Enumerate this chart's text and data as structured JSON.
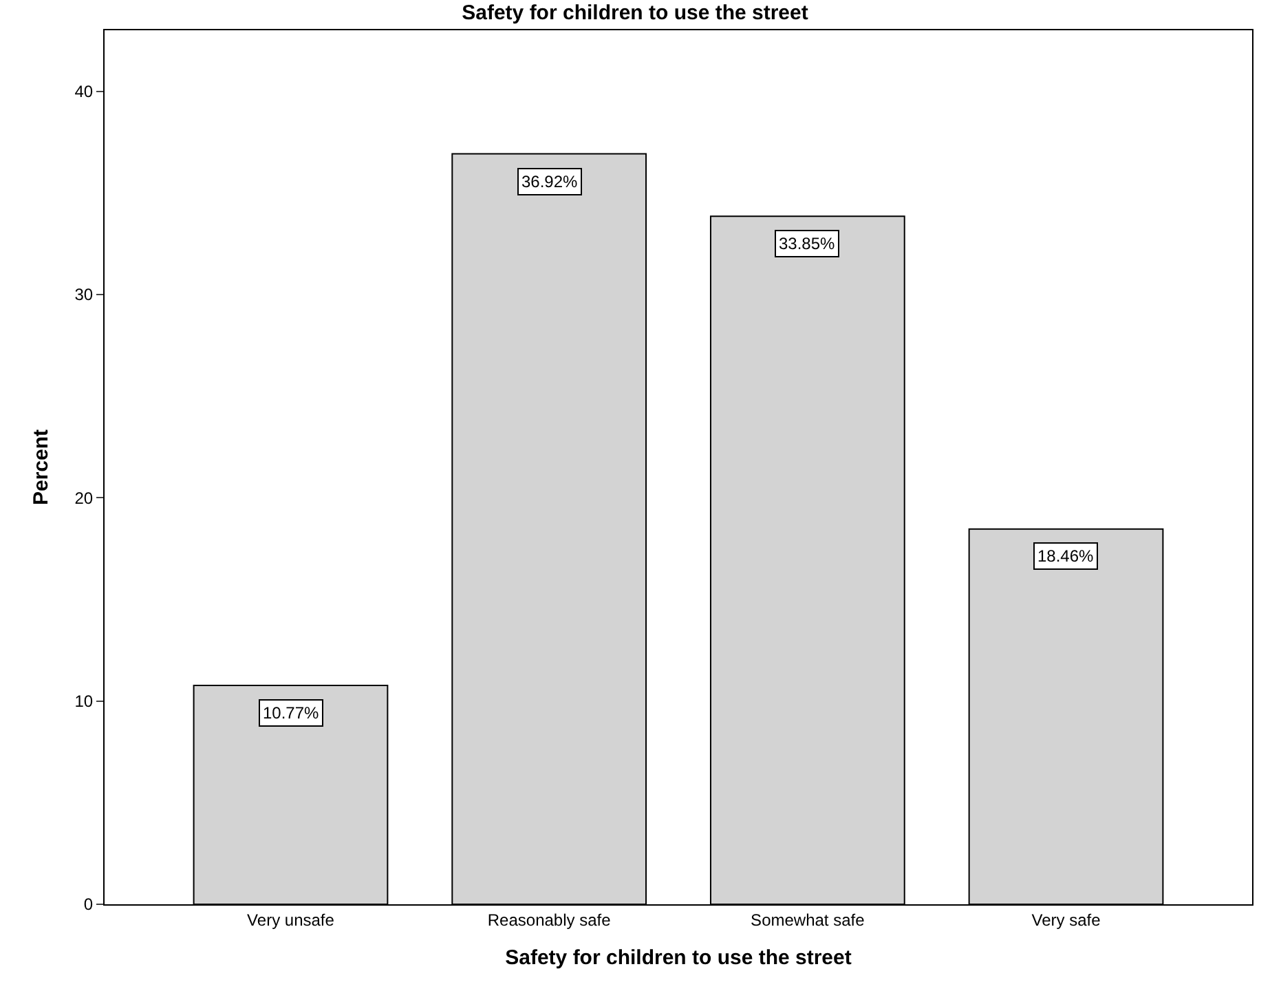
{
  "chart_data": {
    "type": "bar",
    "title": "Safety for children to use the street",
    "xlabel": "Safety for children to use the street",
    "ylabel": "Percent",
    "categories": [
      "Very unsafe",
      "Reasonably safe",
      "Somewhat safe",
      "Very safe"
    ],
    "values": [
      10.77,
      36.92,
      33.85,
      18.46
    ],
    "value_labels": [
      "10.77%",
      "36.92%",
      "33.85%",
      "18.46%"
    ],
    "color": "#d3d3d3",
    "ylim": [
      0,
      43
    ],
    "yticks": [
      0,
      10,
      20,
      30,
      40
    ],
    "grid": false,
    "legend": false
  }
}
